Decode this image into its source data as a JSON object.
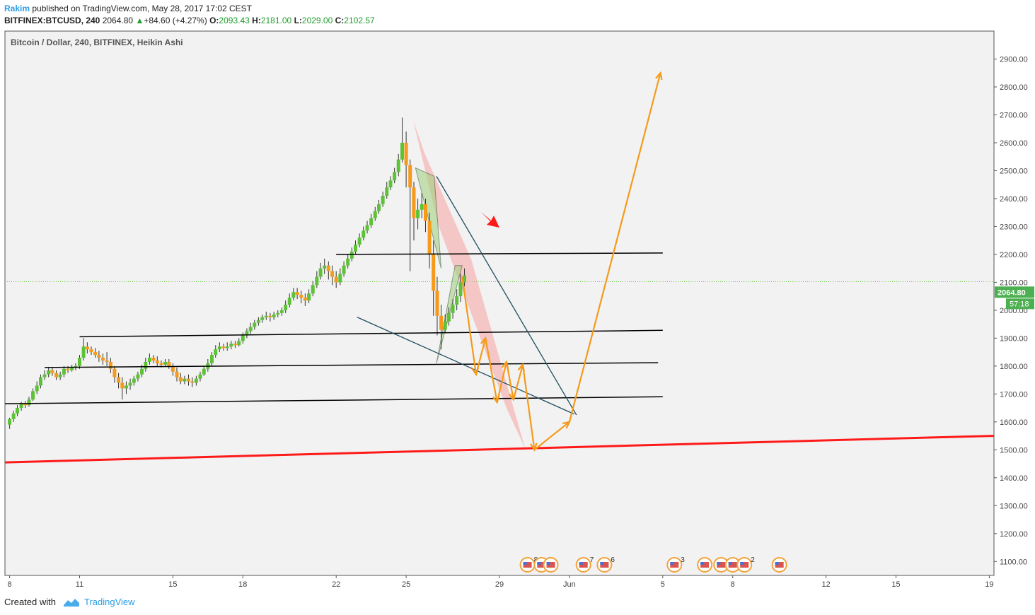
{
  "header": {
    "author": "Rakim",
    "published": "published on TradingView.com, May 28, 2017 17:02 CEST",
    "symbol": "BITFINEX:BTCUSD, 240",
    "last": "2064.80",
    "change": "+84.60 (+4.27%)",
    "o_label": "O:",
    "o_val": "2093.43",
    "h_label": "H:",
    "h_val": "2181.00",
    "l_label": "L:",
    "l_val": "2029.00",
    "c_label": "C:",
    "c_val": "2102.57"
  },
  "footer": {
    "created": "Created with",
    "brand": "TradingView"
  },
  "colors": {
    "up": "#5dc236",
    "down": "#f59a1a",
    "support": "#000000",
    "trend": "#ff1a1a",
    "projection": "#f59a1a",
    "accent": "#2a9ce6"
  },
  "chart_data": {
    "type": "candlestick",
    "title": "Bitcoin / Dollar, 240, BITFINEX, Heikin Ashi",
    "price_label": "2064.80",
    "countdown": "57:18",
    "y_ticks": [
      "2900.00",
      "2800.00",
      "2700.00",
      "2600.00",
      "2500.00",
      "2400.00",
      "2300.00",
      "2200.00",
      "2100.00",
      "2000.00",
      "1900.00",
      "1800.00",
      "1700.00",
      "1600.00",
      "1500.00",
      "1400.00",
      "1300.00",
      "1200.00",
      "1100.00"
    ],
    "y_tick_values": [
      2900,
      2800,
      2700,
      2600,
      2500,
      2400,
      2300,
      2200,
      2100,
      2000,
      1900,
      1800,
      1700,
      1600,
      1500,
      1400,
      1300,
      1200,
      1100
    ],
    "x_ticks": [
      "8",
      "11",
      "15",
      "18",
      "22",
      "25",
      "29",
      "Jun",
      "5",
      "8",
      "12",
      "15",
      "19"
    ],
    "x_tick_days": [
      8,
      11,
      15,
      18,
      22,
      25,
      29,
      32,
      36,
      39,
      43,
      46,
      50
    ],
    "ylim": [
      1050,
      3000
    ],
    "xlim": [
      7.8,
      50.2
    ],
    "last_price": 2064.8,
    "prev_close_line": 2102.57,
    "candles": [
      [
        8.0,
        1590,
        1610,
        1575,
        1615
      ],
      [
        8.17,
        1610,
        1630,
        1600,
        1640
      ],
      [
        8.33,
        1630,
        1650,
        1620,
        1660
      ],
      [
        8.5,
        1650,
        1665,
        1640,
        1672
      ],
      [
        8.67,
        1665,
        1660,
        1650,
        1675
      ],
      [
        8.83,
        1660,
        1680,
        1655,
        1690
      ],
      [
        9.0,
        1680,
        1710,
        1675,
        1720
      ],
      [
        9.17,
        1710,
        1730,
        1700,
        1745
      ],
      [
        9.33,
        1730,
        1760,
        1720,
        1770
      ],
      [
        9.5,
        1760,
        1770,
        1750,
        1785
      ],
      [
        9.67,
        1770,
        1785,
        1760,
        1795
      ],
      [
        9.83,
        1785,
        1775,
        1765,
        1795
      ],
      [
        10.0,
        1775,
        1760,
        1750,
        1785
      ],
      [
        10.17,
        1760,
        1770,
        1750,
        1780
      ],
      [
        10.33,
        1770,
        1790,
        1760,
        1800
      ],
      [
        10.5,
        1790,
        1785,
        1775,
        1800
      ],
      [
        10.67,
        1785,
        1795,
        1780,
        1805
      ],
      [
        10.83,
        1795,
        1800,
        1785,
        1810
      ],
      [
        11.0,
        1800,
        1830,
        1790,
        1840
      ],
      [
        11.17,
        1830,
        1870,
        1820,
        1900
      ],
      [
        11.33,
        1870,
        1860,
        1845,
        1885
      ],
      [
        11.5,
        1860,
        1850,
        1840,
        1870
      ],
      [
        11.67,
        1850,
        1840,
        1830,
        1865
      ],
      [
        11.83,
        1840,
        1830,
        1815,
        1855
      ],
      [
        12.0,
        1830,
        1820,
        1805,
        1845
      ],
      [
        12.17,
        1820,
        1815,
        1800,
        1850
      ],
      [
        12.33,
        1815,
        1790,
        1775,
        1830
      ],
      [
        12.5,
        1790,
        1760,
        1740,
        1800
      ],
      [
        12.67,
        1760,
        1740,
        1720,
        1775
      ],
      [
        12.83,
        1740,
        1720,
        1680,
        1760
      ],
      [
        13.0,
        1720,
        1730,
        1700,
        1745
      ],
      [
        13.17,
        1730,
        1740,
        1715,
        1755
      ],
      [
        13.33,
        1740,
        1755,
        1730,
        1765
      ],
      [
        13.5,
        1755,
        1770,
        1745,
        1780
      ],
      [
        13.67,
        1770,
        1790,
        1760,
        1805
      ],
      [
        13.83,
        1790,
        1815,
        1780,
        1830
      ],
      [
        14.0,
        1815,
        1830,
        1805,
        1845
      ],
      [
        14.17,
        1830,
        1820,
        1810,
        1840
      ],
      [
        14.33,
        1820,
        1810,
        1800,
        1835
      ],
      [
        14.5,
        1810,
        1805,
        1795,
        1820
      ],
      [
        14.67,
        1805,
        1815,
        1800,
        1825
      ],
      [
        14.83,
        1815,
        1800,
        1790,
        1825
      ],
      [
        15.0,
        1800,
        1780,
        1765,
        1810
      ],
      [
        15.17,
        1780,
        1760,
        1745,
        1795
      ],
      [
        15.33,
        1760,
        1745,
        1735,
        1775
      ],
      [
        15.5,
        1745,
        1755,
        1735,
        1765
      ],
      [
        15.67,
        1755,
        1745,
        1730,
        1770
      ],
      [
        15.83,
        1745,
        1740,
        1725,
        1760
      ],
      [
        16.0,
        1740,
        1755,
        1730,
        1765
      ],
      [
        16.17,
        1755,
        1770,
        1745,
        1780
      ],
      [
        16.33,
        1770,
        1790,
        1765,
        1800
      ],
      [
        16.5,
        1790,
        1810,
        1780,
        1825
      ],
      [
        16.67,
        1810,
        1840,
        1800,
        1850
      ],
      [
        16.83,
        1840,
        1860,
        1830,
        1875
      ],
      [
        17.0,
        1860,
        1870,
        1850,
        1885
      ],
      [
        17.17,
        1870,
        1865,
        1855,
        1880
      ],
      [
        17.33,
        1865,
        1870,
        1855,
        1885
      ],
      [
        17.5,
        1870,
        1880,
        1860,
        1890
      ],
      [
        17.67,
        1880,
        1875,
        1865,
        1890
      ],
      [
        17.83,
        1875,
        1890,
        1870,
        1900
      ],
      [
        18.0,
        1890,
        1910,
        1880,
        1920
      ],
      [
        18.17,
        1910,
        1925,
        1900,
        1935
      ],
      [
        18.33,
        1925,
        1940,
        1915,
        1955
      ],
      [
        18.5,
        1940,
        1955,
        1930,
        1965
      ],
      [
        18.67,
        1955,
        1965,
        1945,
        1975
      ],
      [
        18.83,
        1965,
        1975,
        1955,
        1985
      ],
      [
        19.0,
        1975,
        1980,
        1965,
        1995
      ],
      [
        19.17,
        1980,
        1975,
        1960,
        1990
      ],
      [
        19.33,
        1975,
        1985,
        1965,
        1995
      ],
      [
        19.5,
        1985,
        1990,
        1975,
        2000
      ],
      [
        19.67,
        1990,
        2000,
        1980,
        2010
      ],
      [
        19.83,
        2000,
        2020,
        1990,
        2035
      ],
      [
        20.0,
        2020,
        2045,
        2010,
        2060
      ],
      [
        20.17,
        2045,
        2065,
        2035,
        2080
      ],
      [
        20.33,
        2065,
        2055,
        2040,
        2080
      ],
      [
        20.5,
        2055,
        2045,
        2025,
        2070
      ],
      [
        20.67,
        2045,
        2035,
        2015,
        2060
      ],
      [
        20.83,
        2035,
        2060,
        2025,
        2075
      ],
      [
        21.0,
        2060,
        2090,
        2050,
        2105
      ],
      [
        21.17,
        2090,
        2120,
        2080,
        2140
      ],
      [
        21.33,
        2120,
        2150,
        2110,
        2170
      ],
      [
        21.5,
        2150,
        2160,
        2130,
        2185
      ],
      [
        21.67,
        2160,
        2140,
        2110,
        2175
      ],
      [
        21.83,
        2140,
        2120,
        2090,
        2160
      ],
      [
        22.0,
        2120,
        2100,
        2080,
        2140
      ],
      [
        22.17,
        2100,
        2130,
        2090,
        2150
      ],
      [
        22.33,
        2130,
        2160,
        2120,
        2175
      ],
      [
        22.5,
        2160,
        2185,
        2150,
        2200
      ],
      [
        22.67,
        2185,
        2210,
        2175,
        2225
      ],
      [
        22.83,
        2210,
        2235,
        2200,
        2250
      ],
      [
        23.0,
        2235,
        2260,
        2225,
        2275
      ],
      [
        23.17,
        2260,
        2285,
        2250,
        2300
      ],
      [
        23.33,
        2285,
        2305,
        2275,
        2320
      ],
      [
        23.5,
        2305,
        2330,
        2295,
        2345
      ],
      [
        23.67,
        2330,
        2355,
        2320,
        2370
      ],
      [
        23.83,
        2355,
        2380,
        2345,
        2395
      ],
      [
        24.0,
        2380,
        2410,
        2370,
        2425
      ],
      [
        24.17,
        2410,
        2440,
        2400,
        2460
      ],
      [
        24.33,
        2440,
        2465,
        2430,
        2480
      ],
      [
        24.5,
        2465,
        2495,
        2455,
        2510
      ],
      [
        24.67,
        2495,
        2540,
        2480,
        2560
      ],
      [
        24.83,
        2540,
        2600,
        2530,
        2690
      ],
      [
        25.0,
        2600,
        2520,
        2440,
        2640
      ],
      [
        25.17,
        2520,
        2440,
        2140,
        2540
      ],
      [
        25.33,
        2440,
        2330,
        2250,
        2460
      ],
      [
        25.5,
        2330,
        2360,
        2290,
        2400
      ],
      [
        25.67,
        2360,
        2380,
        2330,
        2420
      ],
      [
        25.83,
        2380,
        2320,
        2280,
        2400
      ],
      [
        26.0,
        2320,
        2200,
        2150,
        2350
      ],
      [
        26.17,
        2200,
        2070,
        1980,
        2250
      ],
      [
        26.33,
        2070,
        1980,
        1910,
        2120
      ],
      [
        26.5,
        1980,
        1930,
        1860,
        2020
      ],
      [
        26.67,
        1930,
        1960,
        1920,
        1985
      ],
      [
        26.83,
        1960,
        1990,
        1945,
        2010
      ],
      [
        27.0,
        1990,
        2020,
        1970,
        2040
      ],
      [
        27.17,
        2020,
        2050,
        2000,
        2075
      ],
      [
        27.33,
        2050,
        2100,
        2030,
        2130
      ],
      [
        27.5,
        2100,
        2125,
        2085,
        2150
      ]
    ],
    "support_lines": [
      {
        "x1": 22.0,
        "y1": 2200,
        "x2": 36.0,
        "y2": 2205
      },
      {
        "x1": 11.0,
        "y1": 1905,
        "x2": 36.0,
        "y2": 1928
      },
      {
        "x1": 9.5,
        "y1": 1795,
        "x2": 35.8,
        "y2": 1812
      },
      {
        "x1": 7.8,
        "y1": 1665,
        "x2": 36.0,
        "y2": 1690
      }
    ],
    "trend_line": {
      "x1": 7.8,
      "y1": 1455,
      "x2": 50.2,
      "y2": 1550
    },
    "wedge_lines": [
      {
        "x1": 26.3,
        "y1": 2480,
        "x2": 32.3,
        "y2": 1625
      },
      {
        "x1": 22.9,
        "y1": 1975,
        "x2": 32.2,
        "y2": 1628
      }
    ],
    "red_channel": [
      [
        25.3,
        2680
      ],
      [
        25.8,
        2560
      ],
      [
        27.8,
        2180
      ],
      [
        30.1,
        1505
      ],
      [
        29.3,
        1650
      ],
      [
        26.4,
        2300
      ]
    ],
    "harmonic_pattern": [
      [
        25.4,
        2510
      ],
      [
        26.2,
        2480
      ],
      [
        26.5,
        2150
      ],
      [
        27.1,
        2160
      ],
      [
        26.3,
        1810
      ],
      [
        27.4,
        2160
      ]
    ],
    "projection_path": [
      [
        27.4,
        2120
      ],
      [
        28.0,
        1770
      ],
      [
        28.4,
        1900
      ],
      [
        28.9,
        1670
      ],
      [
        29.3,
        1815
      ],
      [
        29.6,
        1680
      ],
      [
        30.0,
        1805
      ],
      [
        30.5,
        1500
      ],
      [
        30.8,
        1520
      ],
      [
        32.0,
        1600
      ],
      [
        35.9,
        2850
      ]
    ],
    "event_markers": [
      {
        "day": 30.2,
        "count": "8"
      },
      {
        "day": 30.8,
        "count": "2"
      },
      {
        "day": 31.2,
        "count": ""
      },
      {
        "day": 32.6,
        "count": "7"
      },
      {
        "day": 33.5,
        "count": "6"
      },
      {
        "day": 36.5,
        "count": "3"
      },
      {
        "day": 37.8,
        "count": ""
      },
      {
        "day": 38.5,
        "count": ""
      },
      {
        "day": 39.0,
        "count": ""
      },
      {
        "day": 39.5,
        "count": "2"
      },
      {
        "day": 41.0,
        "count": ""
      }
    ]
  }
}
